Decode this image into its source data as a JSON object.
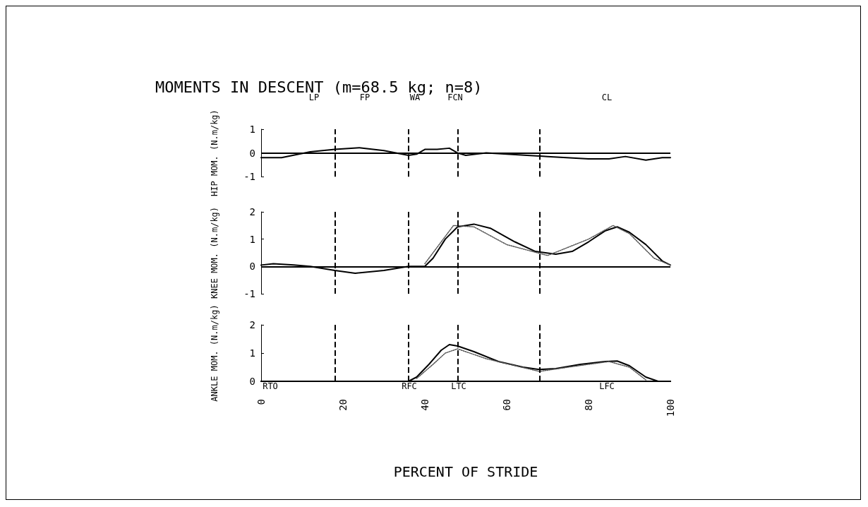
{
  "chart_data": [
    {
      "type": "line",
      "title": "MOMENTS IN DESCENT (m=68.5 kg; n=8)",
      "ylabel": "HIP MOM. (N.m/kg)",
      "xlim": [
        0,
        100
      ],
      "xticks": [
        0,
        20,
        40,
        60,
        80,
        100
      ],
      "ylim": [
        -1,
        1
      ],
      "yticks": [
        -1,
        0,
        1
      ],
      "tick_labels": "y",
      "grid": false,
      "marker": "none",
      "series": [
        {
          "color": "#000000",
          "line_style": "solid",
          "x": [
            0,
            5,
            12,
            18,
            24,
            30,
            36,
            38,
            40,
            43,
            46,
            48,
            50,
            55,
            65,
            70,
            80,
            85,
            89,
            94,
            98,
            100
          ],
          "values": [
            -0.2,
            -0.2,
            0.05,
            0.15,
            0.22,
            0.1,
            -0.1,
            -0.05,
            0.15,
            0.15,
            0.2,
            0,
            -0.1,
            0,
            -0.1,
            -0.15,
            -0.25,
            -0.25,
            -0.15,
            -0.3,
            -0.2,
            -0.2
          ]
        }
      ],
      "ref_lines": [
        {
          "axis": "y",
          "value": 0,
          "line_style": "solid",
          "color": "#000000"
        },
        {
          "axis": "x",
          "value": 18,
          "line_style": "dashed",
          "color": "#000000"
        },
        {
          "axis": "x",
          "value": 36,
          "line_style": "dashed",
          "color": "#000000"
        },
        {
          "axis": "x",
          "value": 48,
          "line_style": "dashed",
          "color": "#000000"
        },
        {
          "axis": "x",
          "value": 68,
          "line_style": "dashed",
          "color": "#000000"
        }
      ],
      "annotations": [
        "LP",
        "FP",
        "WA",
        "FCN",
        "CL"
      ]
    },
    {
      "type": "line",
      "ylabel": "KNEE MOM. (N.m/kg)",
      "xlim": [
        0,
        100
      ],
      "xticks": [
        0,
        20,
        40,
        60,
        80,
        100
      ],
      "ylim": [
        -1,
        2
      ],
      "yticks": [
        -1,
        0,
        1,
        2
      ],
      "tick_labels": "y",
      "grid": false,
      "marker": "none",
      "series": [
        {
          "color": "#000000",
          "line_style": "solid",
          "x": [
            0,
            3,
            8,
            12,
            18,
            23,
            30,
            36,
            40,
            42,
            45,
            48,
            52,
            56,
            62,
            67,
            72,
            76,
            80,
            84,
            87,
            90,
            94,
            98,
            100
          ],
          "values": [
            0.05,
            0.1,
            0.05,
            0,
            -0.15,
            -0.25,
            -0.15,
            0,
            0,
            0.3,
            1.0,
            1.45,
            1.55,
            1.4,
            0.9,
            0.55,
            0.45,
            0.55,
            0.9,
            1.3,
            1.45,
            1.25,
            0.8,
            0.2,
            0.05
          ]
        },
        {
          "color": "#555555",
          "line_style": "dotted",
          "x": [
            40,
            43,
            47,
            52,
            60,
            70,
            80,
            86,
            90,
            96,
            100
          ],
          "values": [
            0.1,
            0.7,
            1.5,
            1.45,
            0.8,
            0.4,
            1.0,
            1.5,
            1.2,
            0.3,
            0.05
          ]
        }
      ],
      "ref_lines": [
        {
          "axis": "y",
          "value": 0,
          "line_style": "solid",
          "color": "#000000"
        },
        {
          "axis": "x",
          "value": 18,
          "line_style": "dashed",
          "color": "#000000"
        },
        {
          "axis": "x",
          "value": 36,
          "line_style": "dashed",
          "color": "#000000"
        },
        {
          "axis": "x",
          "value": 48,
          "line_style": "dashed",
          "color": "#000000"
        },
        {
          "axis": "x",
          "value": 68,
          "line_style": "dashed",
          "color": "#000000"
        }
      ]
    },
    {
      "type": "line",
      "ylabel": "ANKLE MOM. (N.m/kg)",
      "xlabel": "PERCENT OF STRIDE",
      "xlim": [
        0,
        100
      ],
      "xticks": [
        0,
        20,
        40,
        60,
        80,
        100
      ],
      "ylim": [
        0,
        2
      ],
      "yticks": [
        0,
        1,
        2
      ],
      "grid": false,
      "marker": "none",
      "series": [
        {
          "color": "#000000",
          "line_style": "solid",
          "x": [
            0,
            36,
            38,
            41,
            44,
            46,
            48,
            52,
            58,
            64,
            68,
            72,
            78,
            84,
            87,
            90,
            94,
            97,
            100
          ],
          "values": [
            0,
            0,
            0.15,
            0.6,
            1.1,
            1.3,
            1.25,
            1.05,
            0.7,
            0.5,
            0.42,
            0.45,
            0.6,
            0.7,
            0.72,
            0.55,
            0.15,
            0,
            0
          ]
        },
        {
          "color": "#555555",
          "line_style": "dotted",
          "x": [
            38,
            42,
            45,
            48,
            55,
            68,
            75,
            85,
            90,
            94
          ],
          "values": [
            0.1,
            0.6,
            1.0,
            1.15,
            0.8,
            0.35,
            0.5,
            0.7,
            0.5,
            0.05
          ]
        }
      ],
      "ref_lines": [
        {
          "axis": "x",
          "value": 18,
          "line_style": "dashed",
          "color": "#000000"
        },
        {
          "axis": "x",
          "value": 36,
          "line_style": "dashed",
          "color": "#000000"
        },
        {
          "axis": "x",
          "value": 48,
          "line_style": "dashed",
          "color": "#000000"
        },
        {
          "axis": "x",
          "value": 68,
          "line_style": "dashed",
          "color": "#000000"
        }
      ],
      "annotations": [
        "RTO",
        "RFC",
        "LTC",
        "LFC"
      ]
    }
  ]
}
